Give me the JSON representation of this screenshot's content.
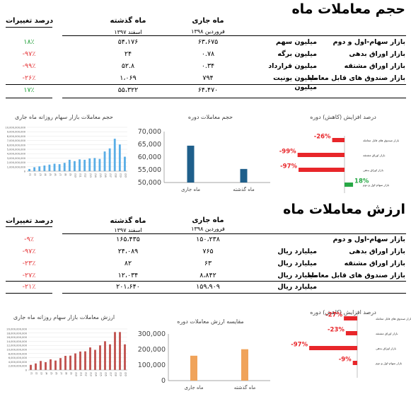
{
  "volume": {
    "title": "حجم معاملات ماه",
    "headers": {
      "pct": "درصد تغییرات",
      "prev": "ماه گذشته",
      "prev_sub": "اسفند ۱۳۹۷",
      "cur": "ماه جاری",
      "cur_sub": "فروردین ۱۳۹۸"
    },
    "rows": [
      {
        "label": "بازار سهام-اول و دوم",
        "unit": "میلیون سهم",
        "cur": "۶۳،۶۷۵",
        "prev": "۵۴،۱۷۶",
        "pct": "۱۸٪",
        "sign": "pos"
      },
      {
        "label": "بازار اوراق بدهی",
        "unit": "میلیون برگه",
        "cur": "۰.۷۸",
        "prev": "۲۴",
        "pct": "-۹۷٪",
        "sign": "neg"
      },
      {
        "label": "بازار اوراق مشتقه",
        "unit": "میلیون قرارداد",
        "cur": "۰.۳۴",
        "prev": "۵۲.۸",
        "pct": "-۹۹٪",
        "sign": "neg"
      },
      {
        "label": "بازار صندوق های قابل معامله",
        "unit": "میلیون یونیت",
        "cur": "۷۹۴",
        "prev": "۱،۰۶۹",
        "pct": "-۲۶٪",
        "sign": "neg"
      }
    ],
    "total": {
      "unit": "میلیون",
      "cur": "۶۴،۴۷۰",
      "prev": "۵۵،۳۲۲",
      "pct": "۱۷٪",
      "sign": "pos"
    }
  },
  "value": {
    "title": "ارزش معاملات ماه",
    "headers": {
      "pct": "درصد تغییرات",
      "prev": "ماه گذشته",
      "prev_sub": "اسفند ۱۳۹۷",
      "cur": "ماه جاری",
      "cur_sub": "فروردین ۱۳۹۸"
    },
    "rows": [
      {
        "label": "بازار سهام-اول و دوم",
        "unit": "",
        "cur": "۱۵۰،۲۳۸",
        "prev": "۱۶۵،۴۳۵",
        "pct": "-۹٪",
        "sign": "neg"
      },
      {
        "label": "بازار اوراق بدهی",
        "unit": "میلیارد ریال",
        "cur": "۷۶۵",
        "prev": "۲۴،۰۸۹",
        "pct": "-۹۷٪",
        "sign": "neg"
      },
      {
        "label": "بازار اوراق مشتقه",
        "unit": "میلیارد ریال",
        "cur": "۶۳",
        "prev": "۸۲",
        "pct": "-۲۳٪",
        "sign": "neg"
      },
      {
        "label": "بازار صندوق های قابل معامله",
        "unit": "میلیارد ریال",
        "cur": "۸،۸۴۲",
        "prev": "۱۲،۰۳۴",
        "pct": "-۲۷٪",
        "sign": "neg"
      }
    ],
    "total": {
      "unit": "میلیارد ریال",
      "cur": "۱۵۹،۹۰۹",
      "prev": "۲۰۱،۶۴۰",
      "pct": "-۲۱٪",
      "sign": "neg"
    }
  },
  "chart_data": [
    {
      "type": "bar",
      "title": "حجم معاملات بازار سهام روزانه ماه جاری",
      "color": "#5aaee6",
      "ylim": [
        0,
        10000000000
      ],
      "yticks": [
        "10,000,000,000",
        "9,000,000,000",
        "8,000,000,000",
        "7,000,000,000",
        "6,000,000,000",
        "5,000,000,000",
        "4,000,000,000",
        "3,000,000,000",
        "2,000,000,000",
        "1,000,000,000",
        "0"
      ],
      "values": [
        500000000,
        900000000,
        1100000000,
        1300000000,
        1500000000,
        1700000000,
        1600000000,
        1900000000,
        2600000000,
        2300000000,
        2700000000,
        2600000000,
        2900000000,
        3000000000,
        2800000000,
        4500000000,
        5200000000,
        7400000000,
        6100000000,
        3300000000
      ]
    },
    {
      "type": "bar",
      "title": "حجم معاملات دوره",
      "color": "#1f5f8b",
      "categories": [
        "ماه جاری",
        "ماه گذشته"
      ],
      "values": [
        64470,
        55322
      ],
      "ylim": [
        50000,
        70000
      ],
      "yticks": [
        "70,000",
        "65,000",
        "60,000",
        "55,000",
        "50,000"
      ]
    },
    {
      "type": "bar",
      "title": "درصد افزایش (کاهش) دوره",
      "categories": [
        "بازار صندوق های قابل معامله",
        "بازار اوراق مشتقه",
        "بازار اوراق بدهی",
        "بازار سهام-اول و دوم"
      ],
      "values": [
        -26,
        -99,
        -97,
        18
      ],
      "labels": [
        "-26%",
        "-99%",
        "-97%",
        "18%"
      ],
      "colors": {
        "neg": "#e8262a",
        "pos": "#27a845"
      }
    },
    {
      "type": "bar",
      "title": "ارزش معاملات بازار سهام روزانه ماه جاری",
      "color": "#c0504d",
      "ylim": [
        0,
        20000000000
      ],
      "yticks": [
        "20,000,000,000",
        "18,000,000,000",
        "16,000,000,000",
        "14,000,000,000",
        "12,000,000,000",
        "10,000,000,000",
        "8,000,000,000",
        "6,000,000,000",
        "4,000,000,000",
        "2,000,000,000",
        "0"
      ],
      "values": [
        2500000000,
        3200000000,
        4400000000,
        3800000000,
        5200000000,
        4600000000,
        5800000000,
        6900000000,
        7000000000,
        8100000000,
        9000000000,
        9100000000,
        11000000000,
        9800000000,
        12000000000,
        14000000000,
        12500000000,
        18500000000,
        18500000000,
        12500000000
      ]
    },
    {
      "type": "bar",
      "title": "مقایسه ارزش معاملات دوره",
      "color": "#f0a35a",
      "categories": [
        "ماه جاری",
        "ماه گذشته"
      ],
      "values": [
        159909,
        201640
      ],
      "ylim": [
        0,
        300000
      ],
      "yticks": [
        "300,000",
        "200,000",
        "100,000",
        "0"
      ]
    },
    {
      "type": "bar",
      "title": "درصد افزایش (کاهش) دوره",
      "categories": [
        "بازار صندوق های قابل معامله",
        "بازار اوراق مشتقه",
        "بازار اوراق بدهی",
        "بازار سهام-اول و دوم"
      ],
      "values": [
        -27,
        -23,
        -97,
        -9
      ],
      "labels": [
        "-27%",
        "-23%",
        "-97%",
        "-9%"
      ],
      "colors": {
        "neg": "#e8262a",
        "pos": "#27a845"
      }
    }
  ]
}
